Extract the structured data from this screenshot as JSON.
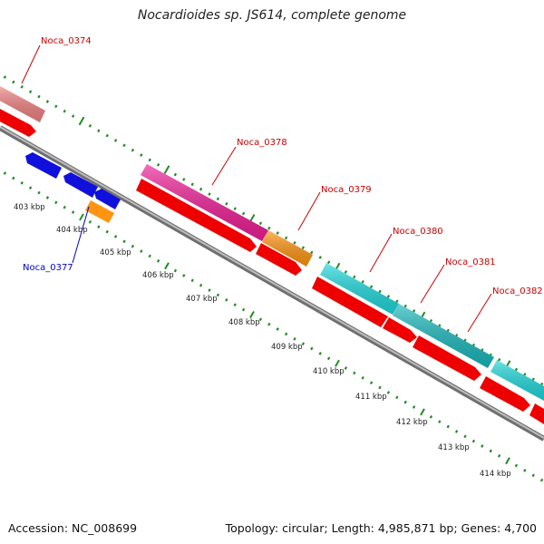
{
  "title": "Nocardioides sp. JS614, complete genome",
  "footer": {
    "accession": "Accession: NC_008699",
    "topology": "Topology: circular; Length: 4,985,871 bp; Genes: 4,700"
  },
  "colors": {
    "red": "#ee0000",
    "pink": "#ee1e96",
    "salmon": "#f08080",
    "orange": "#ff9410",
    "cyan": "#1ed8dc",
    "blue": "#1010dd",
    "tick": "#228b22",
    "backbone": "#8a8a8a"
  },
  "scale": {
    "labels": [
      "403 kbp",
      "404 kbp",
      "405 kbp",
      "406 kbp",
      "407 kbp",
      "408 kbp",
      "409 kbp",
      "410 kbp",
      "411 kbp",
      "412 kbp",
      "413 kbp",
      "414 kbp"
    ]
  },
  "gene_labels": [
    {
      "text": "Noca_0374",
      "color": "red"
    },
    {
      "text": "Noca_0378",
      "color": "red"
    },
    {
      "text": "Noca_0379",
      "color": "red"
    },
    {
      "text": "Noca_0380",
      "color": "red"
    },
    {
      "text": "Noca_0381",
      "color": "red"
    },
    {
      "text": "Noca_0382",
      "color": "red"
    },
    {
      "text": "Noca_0377",
      "color": "blue"
    }
  ]
}
